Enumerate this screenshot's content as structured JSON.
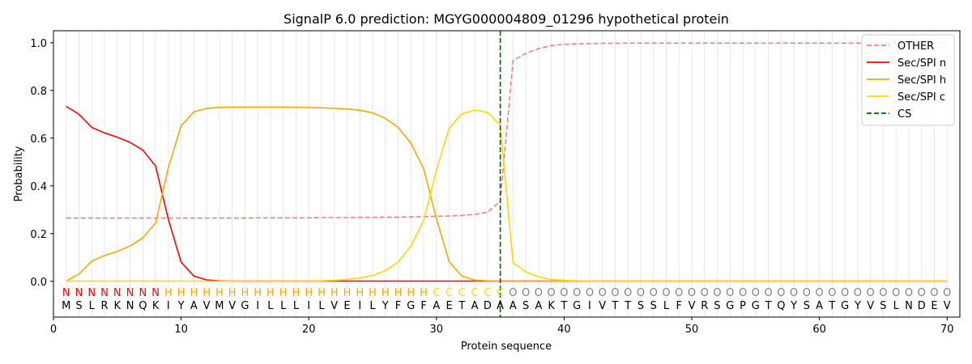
{
  "chart_data": {
    "type": "line",
    "title": "SignalP 6.0 prediction: MGYG000004809_01296 hypothetical protein",
    "xlabel": "Protein sequence",
    "ylabel": "Probability",
    "xlim": [
      0,
      71
    ],
    "ylim": [
      -0.15,
      1.05
    ],
    "x_ticks": [
      0,
      10,
      20,
      30,
      40,
      50,
      60,
      70
    ],
    "y_ticks": [
      0.0,
      0.2,
      0.4,
      0.6,
      0.8,
      1.0
    ],
    "grid": "vertical lines at each residue",
    "legend_position": "top-right",
    "sequence": [
      "M",
      "S",
      "L",
      "R",
      "K",
      "N",
      "Q",
      "K",
      "I",
      "Y",
      "A",
      "V",
      "M",
      "V",
      "G",
      "I",
      "L",
      "L",
      "L",
      "I",
      "L",
      "V",
      "E",
      "I",
      "L",
      "Y",
      "F",
      "G",
      "F",
      "A",
      "E",
      "T",
      "A",
      "D",
      "A",
      "A",
      "S",
      "A",
      "K",
      "T",
      "G",
      "I",
      "V",
      "T",
      "T",
      "S",
      "S",
      "L",
      "F",
      "V",
      "R",
      "S",
      "G",
      "P",
      "G",
      "T",
      "Q",
      "Y",
      "S",
      "A",
      "T",
      "G",
      "Y",
      "V",
      "S",
      "L",
      "N",
      "D",
      "E",
      "V"
    ],
    "region_labels": [
      "N",
      "N",
      "N",
      "N",
      "N",
      "N",
      "N",
      "N",
      "H",
      "H",
      "H",
      "H",
      "H",
      "H",
      "H",
      "H",
      "H",
      "H",
      "H",
      "H",
      "H",
      "H",
      "H",
      "H",
      "H",
      "H",
      "H",
      "H",
      "H",
      "C",
      "C",
      "C",
      "C",
      "C",
      "C",
      "O",
      "O",
      "O",
      "O",
      "O",
      "O",
      "O",
      "O",
      "O",
      "O",
      "O",
      "O",
      "O",
      "O",
      "O",
      "O",
      "O",
      "O",
      "O",
      "O",
      "O",
      "O",
      "O",
      "O",
      "O",
      "O",
      "O",
      "O",
      "O",
      "O",
      "O",
      "O",
      "O",
      "O",
      "O"
    ],
    "region_colors": {
      "N": "#ff0000",
      "H": "#ffa500",
      "C": "#ffd700",
      "O": "#808080"
    },
    "series": [
      {
        "name": "OTHER",
        "color": "#f08080",
        "dash": true,
        "values": [
          0.265,
          0.265,
          0.265,
          0.265,
          0.265,
          0.265,
          0.265,
          0.265,
          0.265,
          0.265,
          0.265,
          0.265,
          0.265,
          0.265,
          0.265,
          0.266,
          0.266,
          0.266,
          0.266,
          0.266,
          0.267,
          0.267,
          0.267,
          0.268,
          0.268,
          0.269,
          0.269,
          0.27,
          0.271,
          0.272,
          0.274,
          0.276,
          0.28,
          0.29,
          0.335,
          0.925,
          0.955,
          0.975,
          0.988,
          0.993,
          0.995,
          0.996,
          0.997,
          0.997,
          0.998,
          0.998,
          0.998,
          0.998,
          0.998,
          0.998,
          0.998,
          0.998,
          0.998,
          0.998,
          0.998,
          0.998,
          0.998,
          0.998,
          0.998,
          0.998,
          0.998,
          0.998,
          0.998,
          0.998,
          0.998,
          0.998,
          0.998,
          0.998,
          0.998,
          0.998
        ]
      },
      {
        "name": "Sec/SPI n",
        "color": "#ff0000",
        "dash": false,
        "values": [
          0.733,
          0.7,
          0.645,
          0.622,
          0.604,
          0.582,
          0.55,
          0.483,
          0.26,
          0.08,
          0.022,
          0.006,
          0.002,
          0.001,
          0.001,
          0.001,
          0.001,
          0.001,
          0.001,
          0.001,
          0.001,
          0.001,
          0.001,
          0.001,
          0.001,
          0.001,
          0.001,
          0.001,
          0.001,
          0.001,
          0.001,
          0.001,
          0.001,
          0.001,
          0.001,
          0.001,
          0.001,
          0.001,
          0.001,
          0.001,
          0.001,
          0.001,
          0.001,
          0.001,
          0.001,
          0.001,
          0.001,
          0.001,
          0.001,
          0.001,
          0.001,
          0.001,
          0.001,
          0.001,
          0.001,
          0.001,
          0.001,
          0.001,
          0.001,
          0.001,
          0.001,
          0.001,
          0.001,
          0.001,
          0.001,
          0.001,
          0.001,
          0.001,
          0.001,
          0.001
        ]
      },
      {
        "name": "Sec/SPI h",
        "color": "#ffa500",
        "dash": false,
        "values": [
          0.002,
          0.03,
          0.085,
          0.108,
          0.125,
          0.148,
          0.182,
          0.245,
          0.475,
          0.652,
          0.71,
          0.725,
          0.729,
          0.73,
          0.73,
          0.73,
          0.73,
          0.73,
          0.729,
          0.728,
          0.727,
          0.725,
          0.722,
          0.717,
          0.706,
          0.683,
          0.645,
          0.578,
          0.472,
          0.262,
          0.082,
          0.022,
          0.005,
          0.002,
          0.001,
          0.001,
          0.001,
          0.001,
          0.001,
          0.001,
          0.001,
          0.001,
          0.001,
          0.001,
          0.001,
          0.001,
          0.001,
          0.001,
          0.001,
          0.001,
          0.001,
          0.001,
          0.001,
          0.001,
          0.001,
          0.001,
          0.001,
          0.001,
          0.001,
          0.001,
          0.001,
          0.001,
          0.001,
          0.001,
          0.001,
          0.001,
          0.001,
          0.001,
          0.001,
          0.001
        ]
      },
      {
        "name": "Sec/SPI c",
        "color": "#ffd700",
        "dash": false,
        "values": [
          0.001,
          0.001,
          0.001,
          0.001,
          0.001,
          0.001,
          0.001,
          0.001,
          0.001,
          0.001,
          0.001,
          0.001,
          0.001,
          0.001,
          0.001,
          0.001,
          0.001,
          0.001,
          0.001,
          0.001,
          0.002,
          0.004,
          0.008,
          0.014,
          0.024,
          0.045,
          0.08,
          0.148,
          0.255,
          0.465,
          0.642,
          0.702,
          0.718,
          0.708,
          0.655,
          0.078,
          0.04,
          0.018,
          0.008,
          0.004,
          0.002,
          0.001,
          0.001,
          0.001,
          0.001,
          0.001,
          0.001,
          0.001,
          0.001,
          0.001,
          0.001,
          0.001,
          0.001,
          0.001,
          0.001,
          0.001,
          0.001,
          0.001,
          0.001,
          0.001,
          0.001,
          0.001,
          0.001,
          0.001,
          0.001,
          0.001,
          0.001,
          0.001,
          0.001,
          0.001
        ]
      }
    ],
    "cs": {
      "name": "CS",
      "x": 35,
      "color": "#006400"
    }
  }
}
